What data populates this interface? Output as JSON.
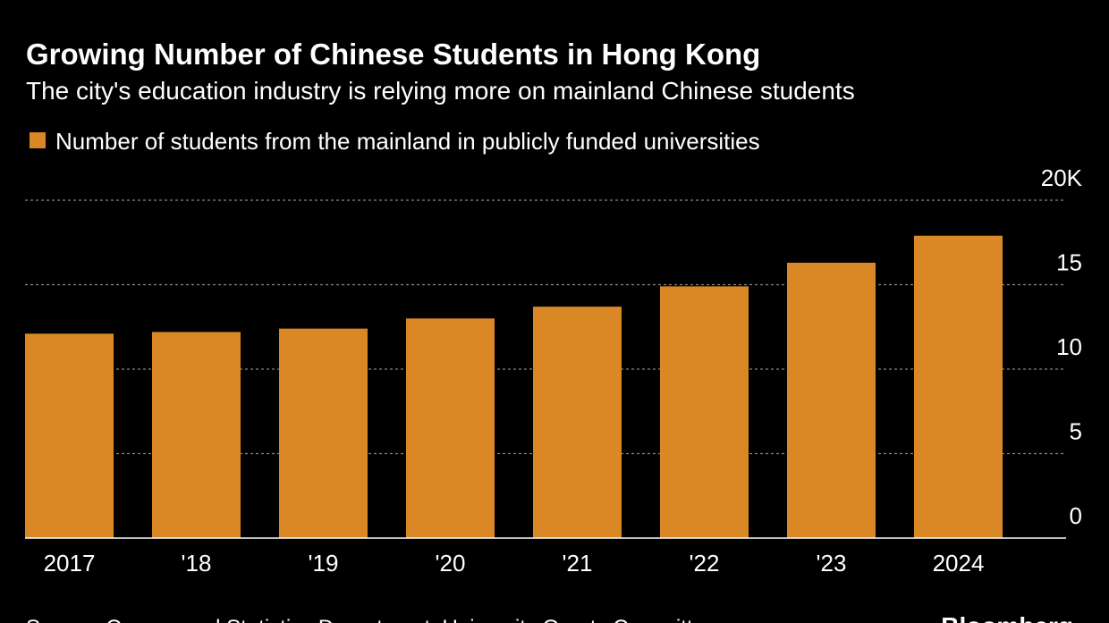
{
  "chart_data": {
    "type": "bar",
    "title": "Growing Number of Chinese Students in Hong Kong",
    "subtitle": "The city's education industry is relying more on mainland Chinese students",
    "legend": "Number of students from the mainland in publicly funded universities",
    "categories": [
      "2017",
      "'18",
      "'19",
      "'20",
      "'21",
      "'22",
      "'23",
      "2024"
    ],
    "values": [
      12.1,
      12.2,
      12.4,
      13.0,
      13.7,
      14.9,
      16.3,
      17.9
    ],
    "color": "#d98825",
    "ylim": [
      0,
      20
    ],
    "yticks": [
      0,
      5,
      10,
      15,
      {
        "value": 20,
        "label": "20K"
      }
    ],
    "grid": true,
    "source": "Source: Census and Statistics Department, University Grants Committee",
    "brand": "Bloomberg"
  }
}
